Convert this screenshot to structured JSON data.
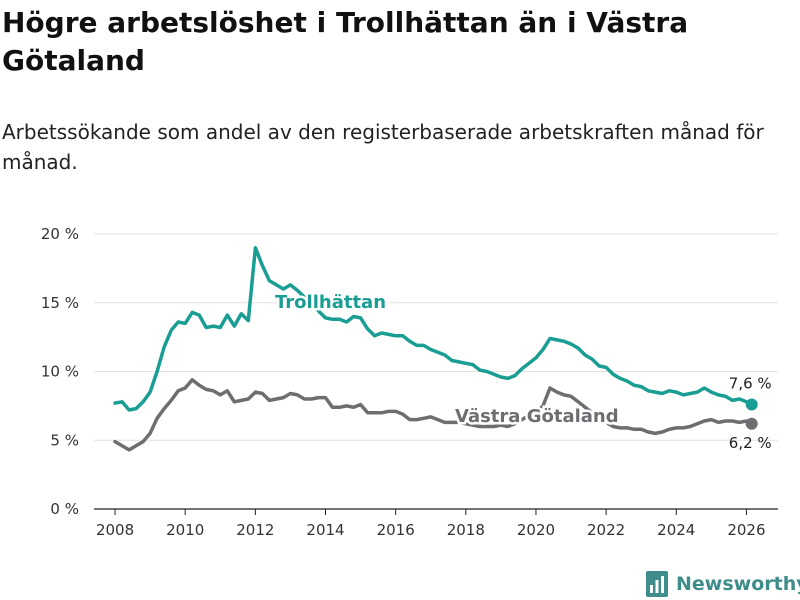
{
  "title": "Högre arbetslöshet i Trollhättan än i Västra Götaland",
  "subtitle": "Arbetssökande som andel av den registerbaserade arbetskraften månad för månad.",
  "brand": {
    "name": "Newsworthy",
    "icon": "newsworthy-logo-icon",
    "color": "#3f8d8a"
  },
  "chart_data": {
    "type": "line",
    "title": "Högre arbetslöshet i Trollhättan än i Västra Götaland",
    "xlabel": "",
    "ylabel": "",
    "xlim": [
      2007.4,
      2026.9
    ],
    "ylim": [
      0,
      20
    ],
    "grid": true,
    "x_ticks": [
      2008,
      2010,
      2012,
      2014,
      2016,
      2018,
      2020,
      2022,
      2024,
      2026
    ],
    "x_tick_labels": [
      "2008",
      "2010",
      "2012",
      "2014",
      "2016",
      "2018",
      "2020",
      "2022",
      "2024",
      "2026"
    ],
    "y_ticks": [
      0,
      5,
      10,
      15,
      20
    ],
    "y_tick_labels": [
      "0 %",
      "5 %",
      "10 %",
      "15 %",
      "20 %"
    ],
    "series": [
      {
        "name": "Trollhättan",
        "color": "#1a9e93",
        "end_label": "7,6 %",
        "points": [
          [
            2008.0,
            7.7
          ],
          [
            2008.2,
            7.8
          ],
          [
            2008.4,
            7.2
          ],
          [
            2008.6,
            7.3
          ],
          [
            2008.8,
            7.8
          ],
          [
            2009.0,
            8.5
          ],
          [
            2009.2,
            10.0
          ],
          [
            2009.4,
            11.8
          ],
          [
            2009.6,
            13.0
          ],
          [
            2009.8,
            13.6
          ],
          [
            2010.0,
            13.5
          ],
          [
            2010.2,
            14.3
          ],
          [
            2010.4,
            14.1
          ],
          [
            2010.6,
            13.2
          ],
          [
            2010.8,
            13.3
          ],
          [
            2011.0,
            13.2
          ],
          [
            2011.2,
            14.1
          ],
          [
            2011.4,
            13.3
          ],
          [
            2011.6,
            14.2
          ],
          [
            2011.8,
            13.7
          ],
          [
            2012.0,
            19.0
          ],
          [
            2012.2,
            17.7
          ],
          [
            2012.4,
            16.6
          ],
          [
            2012.6,
            16.3
          ],
          [
            2012.8,
            16.0
          ],
          [
            2013.0,
            16.3
          ],
          [
            2013.2,
            15.9
          ],
          [
            2013.4,
            15.4
          ],
          [
            2013.6,
            15.1
          ],
          [
            2013.8,
            14.4
          ],
          [
            2014.0,
            13.9
          ],
          [
            2014.2,
            13.8
          ],
          [
            2014.4,
            13.8
          ],
          [
            2014.6,
            13.6
          ],
          [
            2014.8,
            14.0
          ],
          [
            2015.0,
            13.9
          ],
          [
            2015.2,
            13.1
          ],
          [
            2015.4,
            12.6
          ],
          [
            2015.6,
            12.8
          ],
          [
            2015.8,
            12.7
          ],
          [
            2016.0,
            12.6
          ],
          [
            2016.2,
            12.6
          ],
          [
            2016.4,
            12.2
          ],
          [
            2016.6,
            11.9
          ],
          [
            2016.8,
            11.9
          ],
          [
            2017.0,
            11.6
          ],
          [
            2017.2,
            11.4
          ],
          [
            2017.4,
            11.2
          ],
          [
            2017.6,
            10.8
          ],
          [
            2017.8,
            10.7
          ],
          [
            2018.0,
            10.6
          ],
          [
            2018.2,
            10.5
          ],
          [
            2018.4,
            10.1
          ],
          [
            2018.6,
            10.0
          ],
          [
            2018.8,
            9.8
          ],
          [
            2019.0,
            9.6
          ],
          [
            2019.2,
            9.5
          ],
          [
            2019.4,
            9.7
          ],
          [
            2019.6,
            10.2
          ],
          [
            2019.8,
            10.6
          ],
          [
            2020.0,
            11.0
          ],
          [
            2020.2,
            11.6
          ],
          [
            2020.4,
            12.4
          ],
          [
            2020.6,
            12.3
          ],
          [
            2020.8,
            12.2
          ],
          [
            2021.0,
            12.0
          ],
          [
            2021.2,
            11.7
          ],
          [
            2021.4,
            11.2
          ],
          [
            2021.6,
            10.9
          ],
          [
            2021.8,
            10.4
          ],
          [
            2022.0,
            10.3
          ],
          [
            2022.2,
            9.8
          ],
          [
            2022.4,
            9.5
          ],
          [
            2022.6,
            9.3
          ],
          [
            2022.8,
            9.0
          ],
          [
            2023.0,
            8.9
          ],
          [
            2023.2,
            8.6
          ],
          [
            2023.4,
            8.5
          ],
          [
            2023.6,
            8.4
          ],
          [
            2023.8,
            8.6
          ],
          [
            2024.0,
            8.5
          ],
          [
            2024.2,
            8.3
          ],
          [
            2024.4,
            8.4
          ],
          [
            2024.6,
            8.5
          ],
          [
            2024.8,
            8.8
          ],
          [
            2025.0,
            8.5
          ],
          [
            2025.2,
            8.3
          ],
          [
            2025.4,
            8.2
          ],
          [
            2025.6,
            7.9
          ],
          [
            2025.8,
            8.0
          ],
          [
            2026.0,
            7.8
          ],
          [
            2026.15,
            7.6
          ]
        ]
      },
      {
        "name": "Västra Götaland",
        "color": "#6e6d72",
        "end_label": "6,2 %",
        "points": [
          [
            2008.0,
            4.9
          ],
          [
            2008.2,
            4.6
          ],
          [
            2008.4,
            4.3
          ],
          [
            2008.6,
            4.6
          ],
          [
            2008.8,
            4.9
          ],
          [
            2009.0,
            5.5
          ],
          [
            2009.2,
            6.6
          ],
          [
            2009.4,
            7.3
          ],
          [
            2009.6,
            7.9
          ],
          [
            2009.8,
            8.6
          ],
          [
            2010.0,
            8.8
          ],
          [
            2010.2,
            9.4
          ],
          [
            2010.4,
            9.0
          ],
          [
            2010.6,
            8.7
          ],
          [
            2010.8,
            8.6
          ],
          [
            2011.0,
            8.3
          ],
          [
            2011.2,
            8.6
          ],
          [
            2011.4,
            7.8
          ],
          [
            2011.6,
            7.9
          ],
          [
            2011.8,
            8.0
          ],
          [
            2012.0,
            8.5
          ],
          [
            2012.2,
            8.4
          ],
          [
            2012.4,
            7.9
          ],
          [
            2012.6,
            8.0
          ],
          [
            2012.8,
            8.1
          ],
          [
            2013.0,
            8.4
          ],
          [
            2013.2,
            8.3
          ],
          [
            2013.4,
            8.0
          ],
          [
            2013.6,
            8.0
          ],
          [
            2013.8,
            8.1
          ],
          [
            2014.0,
            8.1
          ],
          [
            2014.2,
            7.4
          ],
          [
            2014.4,
            7.4
          ],
          [
            2014.6,
            7.5
          ],
          [
            2014.8,
            7.4
          ],
          [
            2015.0,
            7.6
          ],
          [
            2015.2,
            7.0
          ],
          [
            2015.4,
            7.0
          ],
          [
            2015.6,
            7.0
          ],
          [
            2015.8,
            7.1
          ],
          [
            2016.0,
            7.1
          ],
          [
            2016.2,
            6.9
          ],
          [
            2016.4,
            6.5
          ],
          [
            2016.6,
            6.5
          ],
          [
            2016.8,
            6.6
          ],
          [
            2017.0,
            6.7
          ],
          [
            2017.2,
            6.5
          ],
          [
            2017.4,
            6.3
          ],
          [
            2017.6,
            6.3
          ],
          [
            2017.8,
            6.3
          ],
          [
            2018.0,
            6.2
          ],
          [
            2018.2,
            6.1
          ],
          [
            2018.4,
            6.0
          ],
          [
            2018.6,
            6.0
          ],
          [
            2018.8,
            6.0
          ],
          [
            2019.0,
            6.1
          ],
          [
            2019.2,
            6.0
          ],
          [
            2019.4,
            6.2
          ],
          [
            2019.6,
            6.5
          ],
          [
            2019.8,
            6.8
          ],
          [
            2020.0,
            7.0
          ],
          [
            2020.2,
            7.5
          ],
          [
            2020.4,
            8.8
          ],
          [
            2020.6,
            8.5
          ],
          [
            2020.8,
            8.3
          ],
          [
            2021.0,
            8.2
          ],
          [
            2021.2,
            7.8
          ],
          [
            2021.4,
            7.4
          ],
          [
            2021.6,
            7.0
          ],
          [
            2021.8,
            6.6
          ],
          [
            2022.0,
            6.3
          ],
          [
            2022.2,
            6.0
          ],
          [
            2022.4,
            5.9
          ],
          [
            2022.6,
            5.9
          ],
          [
            2022.8,
            5.8
          ],
          [
            2023.0,
            5.8
          ],
          [
            2023.2,
            5.6
          ],
          [
            2023.4,
            5.5
          ],
          [
            2023.6,
            5.6
          ],
          [
            2023.8,
            5.8
          ],
          [
            2024.0,
            5.9
          ],
          [
            2024.2,
            5.9
          ],
          [
            2024.4,
            6.0
          ],
          [
            2024.6,
            6.2
          ],
          [
            2024.8,
            6.4
          ],
          [
            2025.0,
            6.5
          ],
          [
            2025.2,
            6.3
          ],
          [
            2025.4,
            6.4
          ],
          [
            2025.6,
            6.4
          ],
          [
            2025.8,
            6.3
          ],
          [
            2026.0,
            6.4
          ],
          [
            2026.15,
            6.2
          ]
        ]
      }
    ]
  }
}
